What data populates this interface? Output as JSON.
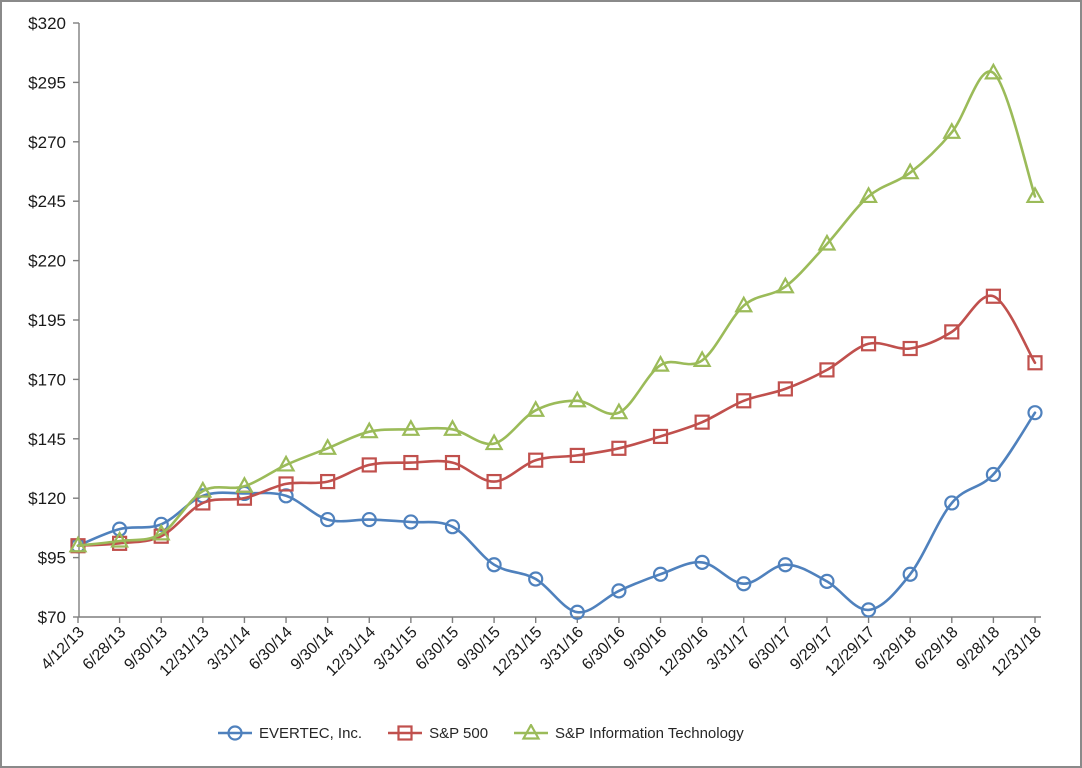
{
  "chart_data": {
    "type": "line",
    "title": "",
    "subtitle": "",
    "xlabel": "",
    "ylabel": "",
    "grid": false,
    "smoothed_lines": true,
    "legend_position": "bottom",
    "y_axis": {
      "min": 70,
      "max": 320,
      "step": 25,
      "prefix": "$"
    },
    "y_tick_labels": [
      "$70",
      "$95",
      "$120",
      "$145",
      "$170",
      "$195",
      "$220",
      "$245",
      "$270",
      "$295",
      "$320"
    ],
    "x_tick_labels": [
      "4/12/13",
      "6/28/13",
      "9/30/13",
      "12/31/13",
      "3/31/14",
      "6/30/14",
      "9/30/14",
      "12/31/14",
      "3/31/15",
      "6/30/15",
      "9/30/15",
      "12/31/15",
      "3/31/16",
      "6/30/16",
      "9/30/16",
      "12/30/16",
      "3/31/17",
      "6/30/17",
      "9/29/17",
      "12/29/17",
      "3/29/18",
      "6/29/18",
      "9/28/18",
      "12/31/18"
    ],
    "series": [
      {
        "name": "EVERTEC, Inc.",
        "marker": "circle",
        "color": "#4F81BD",
        "values": [
          100,
          107,
          109,
          121,
          122,
          121,
          111,
          111,
          110,
          108,
          92,
          86,
          72,
          81,
          88,
          93,
          84,
          92,
          85,
          73,
          88,
          118,
          130,
          156
        ]
      },
      {
        "name": "S&P 500",
        "marker": "square",
        "color": "#C0504D",
        "values": [
          100,
          101,
          104,
          118,
          120,
          126,
          127,
          134,
          135,
          135,
          127,
          136,
          138,
          141,
          146,
          152,
          161,
          166,
          174,
          185,
          183,
          190,
          205,
          177
        ]
      },
      {
        "name": "S&P Information Technology",
        "marker": "triangle",
        "color": "#9BBB59",
        "values": [
          100,
          102,
          105,
          123,
          125,
          134,
          141,
          148,
          149,
          149,
          143,
          157,
          161,
          156,
          176,
          178,
          201,
          209,
          227,
          247,
          257,
          274,
          299,
          247
        ]
      }
    ],
    "colors": {
      "axis_line": "#7f7f7f",
      "tick_label_text": "#1a1a1a",
      "legend_text": "#262626",
      "frame_border": "#8a8a8a",
      "background": "#ffffff"
    }
  }
}
